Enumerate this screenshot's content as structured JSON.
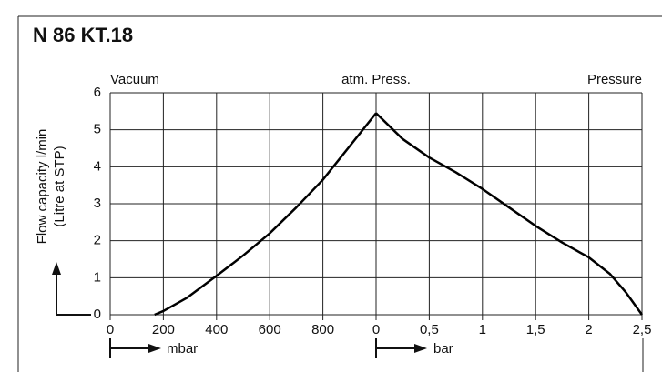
{
  "chart_data": {
    "type": "line",
    "title": "N 86 KT.18",
    "ylabel": "Flow capacity l/min",
    "ylabel2": "(Litre at STP)",
    "annotations": [
      "Vacuum",
      "atm. Press.",
      "Pressure"
    ],
    "xlabel": "mbar",
    "x2label": "bar",
    "xlim": [
      0,
      1000
    ],
    "xticks": [
      0,
      200,
      400,
      600,
      800
    ],
    "x2lim": [
      0,
      2.5
    ],
    "x2ticks": [
      0,
      {
        "value": 0.5,
        "label": "0,5"
      },
      1,
      {
        "value": 1.5,
        "label": "1,5"
      },
      2,
      {
        "value": 2.5,
        "label": "2,5"
      }
    ],
    "ylim": [
      0,
      6
    ],
    "yticks": [
      0,
      1,
      2,
      3,
      4,
      5,
      6
    ],
    "grid": true,
    "series": [
      {
        "color": "#000000",
        "xaxis": "x",
        "x": [
          167,
          200,
          287,
          400,
          500,
          600,
          700,
          800,
          900,
          1000
        ],
        "values": [
          0,
          0.1,
          0.45,
          1.05,
          1.6,
          2.2,
          2.9,
          3.65,
          4.55,
          5.45
        ]
      },
      {
        "color": "#000000",
        "xaxis": "x2",
        "x": [
          0,
          0.25,
          0.5,
          0.75,
          1,
          1.25,
          1.5,
          1.75,
          2,
          2.2,
          2.35,
          2.5
        ],
        "values": [
          5.45,
          4.75,
          4.25,
          3.85,
          3.4,
          2.9,
          2.4,
          1.95,
          1.55,
          1.1,
          0.6,
          0
        ]
      }
    ]
  }
}
